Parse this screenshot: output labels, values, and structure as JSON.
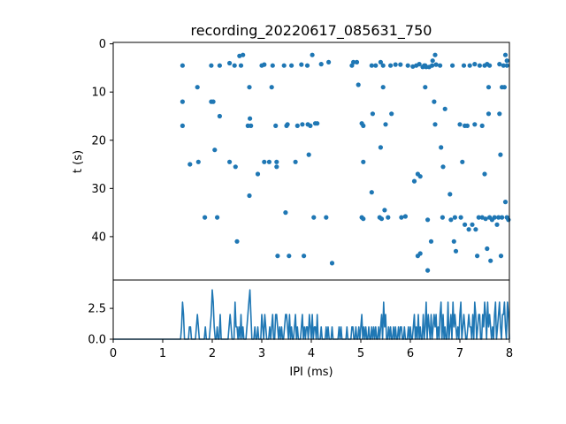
{
  "title": "recording_20220617_085631_750",
  "colors": {
    "series": "#1f77b4",
    "axes": "#000000",
    "background": "#ffffff"
  },
  "chart_data": [
    {
      "type": "scatter",
      "panel": "top",
      "title": "recording_20220617_085631_750",
      "xlabel": "",
      "ylabel": "t (s)",
      "xlim": [
        0,
        8
      ],
      "ylim": [
        49,
        -0.3
      ],
      "y_inverted": true,
      "yticks": [
        0,
        10,
        20,
        30,
        40
      ],
      "grid": false,
      "points": [
        [
          1.4,
          4.5
        ],
        [
          1.4,
          12.0
        ],
        [
          1.4,
          17.0
        ],
        [
          1.55,
          25.0
        ],
        [
          1.7,
          9.0
        ],
        [
          1.72,
          24.5
        ],
        [
          1.85,
          36.0
        ],
        [
          1.98,
          4.5
        ],
        [
          1.98,
          12.0
        ],
        [
          2.02,
          12.0
        ],
        [
          2.05,
          22.0
        ],
        [
          2.1,
          36.0
        ],
        [
          2.15,
          4.5
        ],
        [
          2.15,
          15.0
        ],
        [
          2.35,
          4.0
        ],
        [
          2.35,
          24.5
        ],
        [
          2.45,
          4.5
        ],
        [
          2.47,
          25.5
        ],
        [
          2.5,
          41.0
        ],
        [
          2.55,
          2.5
        ],
        [
          2.58,
          4.5
        ],
        [
          2.62,
          2.3
        ],
        [
          2.72,
          17.0
        ],
        [
          2.75,
          9.0
        ],
        [
          2.75,
          31.5
        ],
        [
          2.76,
          15.5
        ],
        [
          2.78,
          17.0
        ],
        [
          2.92,
          27.0
        ],
        [
          3.0,
          4.5
        ],
        [
          3.05,
          4.3
        ],
        [
          3.05,
          24.5
        ],
        [
          3.15,
          24.5
        ],
        [
          3.2,
          9.0
        ],
        [
          3.22,
          4.5
        ],
        [
          3.28,
          17.0
        ],
        [
          3.3,
          24.5
        ],
        [
          3.3,
          25.5
        ],
        [
          3.32,
          44.0
        ],
        [
          3.45,
          4.5
        ],
        [
          3.48,
          35.0
        ],
        [
          3.5,
          17.0
        ],
        [
          3.52,
          16.7
        ],
        [
          3.55,
          44.0
        ],
        [
          3.6,
          4.5
        ],
        [
          3.68,
          24.5
        ],
        [
          3.72,
          17.0
        ],
        [
          3.8,
          4.3
        ],
        [
          3.82,
          16.7
        ],
        [
          3.85,
          44.0
        ],
        [
          3.92,
          4.5
        ],
        [
          3.93,
          16.7
        ],
        [
          3.95,
          23.0
        ],
        [
          3.98,
          17.0
        ],
        [
          4.02,
          2.3
        ],
        [
          4.05,
          36.0
        ],
        [
          4.08,
          16.5
        ],
        [
          4.12,
          16.5
        ],
        [
          4.2,
          4.2
        ],
        [
          4.3,
          36.0
        ],
        [
          4.35,
          3.8
        ],
        [
          4.42,
          45.5
        ],
        [
          4.82,
          4.5
        ],
        [
          4.85,
          3.8
        ],
        [
          4.92,
          3.8
        ],
        [
          4.95,
          8.5
        ],
        [
          5.02,
          16.5
        ],
        [
          5.02,
          36.0
        ],
        [
          5.05,
          24.5
        ],
        [
          5.05,
          17.0
        ],
        [
          5.05,
          36.3
        ],
        [
          5.22,
          4.5
        ],
        [
          5.22,
          30.8
        ],
        [
          5.24,
          14.5
        ],
        [
          5.3,
          4.5
        ],
        [
          5.38,
          36.0
        ],
        [
          5.4,
          3.8
        ],
        [
          5.4,
          21.5
        ],
        [
          5.42,
          36.3
        ],
        [
          5.45,
          4.5
        ],
        [
          5.45,
          9.0
        ],
        [
          5.48,
          34.5
        ],
        [
          5.5,
          16.7
        ],
        [
          5.55,
          36.0
        ],
        [
          5.6,
          4.5
        ],
        [
          5.62,
          14.5
        ],
        [
          5.7,
          4.3
        ],
        [
          5.8,
          4.3
        ],
        [
          5.82,
          36.0
        ],
        [
          5.9,
          35.8
        ],
        [
          5.95,
          4.5
        ],
        [
          6.05,
          4.7
        ],
        [
          6.08,
          28.5
        ],
        [
          6.12,
          4.5
        ],
        [
          6.15,
          27.0
        ],
        [
          6.15,
          44.0
        ],
        [
          6.18,
          4.2
        ],
        [
          6.2,
          27.5
        ],
        [
          6.2,
          43.5
        ],
        [
          6.25,
          4.8
        ],
        [
          6.28,
          4.5
        ],
        [
          6.3,
          4.5
        ],
        [
          6.3,
          9.0
        ],
        [
          6.32,
          4.8
        ],
        [
          6.35,
          36.5
        ],
        [
          6.35,
          47.0
        ],
        [
          6.38,
          4.8
        ],
        [
          6.42,
          41.0
        ],
        [
          6.44,
          4.5
        ],
        [
          6.45,
          3.5
        ],
        [
          6.48,
          12.0
        ],
        [
          6.5,
          2.3
        ],
        [
          6.5,
          16.7
        ],
        [
          6.52,
          4.3
        ],
        [
          6.6,
          4.5
        ],
        [
          6.62,
          21.5
        ],
        [
          6.65,
          36.0
        ],
        [
          6.66,
          25.5
        ],
        [
          6.7,
          13.5
        ],
        [
          6.8,
          31.2
        ],
        [
          6.82,
          36.5
        ],
        [
          6.85,
          4.5
        ],
        [
          6.88,
          41.0
        ],
        [
          6.9,
          36.0
        ],
        [
          6.92,
          43.0
        ],
        [
          7.0,
          16.7
        ],
        [
          7.02,
          36.0
        ],
        [
          7.05,
          24.5
        ],
        [
          7.08,
          4.5
        ],
        [
          7.1,
          17.0
        ],
        [
          7.1,
          37.5
        ],
        [
          7.15,
          17.0
        ],
        [
          7.18,
          38.5
        ],
        [
          7.2,
          4.5
        ],
        [
          7.25,
          37.5
        ],
        [
          7.3,
          4.2
        ],
        [
          7.3,
          16.7
        ],
        [
          7.32,
          38.5
        ],
        [
          7.35,
          44.0
        ],
        [
          7.38,
          36.0
        ],
        [
          7.4,
          4.5
        ],
        [
          7.45,
          17.0
        ],
        [
          7.45,
          36.0
        ],
        [
          7.5,
          4.5
        ],
        [
          7.5,
          27.0
        ],
        [
          7.52,
          36.3
        ],
        [
          7.55,
          42.5
        ],
        [
          7.55,
          4.2
        ],
        [
          7.58,
          14.5
        ],
        [
          7.58,
          9.0
        ],
        [
          7.6,
          4.5
        ],
        [
          7.6,
          36.0
        ],
        [
          7.62,
          45.0
        ],
        [
          7.65,
          36.5
        ],
        [
          7.7,
          36.0
        ],
        [
          7.75,
          37.5
        ],
        [
          7.78,
          36.0
        ],
        [
          7.8,
          14.5
        ],
        [
          7.8,
          4.2
        ],
        [
          7.82,
          23.0
        ],
        [
          7.83,
          44.0
        ],
        [
          7.85,
          36.0
        ],
        [
          7.85,
          9.0
        ],
        [
          7.88,
          4.5
        ],
        [
          7.9,
          9.0
        ],
        [
          7.92,
          2.3
        ],
        [
          7.92,
          32.8
        ],
        [
          7.95,
          4.5
        ],
        [
          7.95,
          3.5
        ],
        [
          7.95,
          36.0
        ],
        [
          7.98,
          36.5
        ]
      ]
    },
    {
      "type": "line",
      "panel": "bottom",
      "xlabel": "IPI (ms)",
      "ylabel": "",
      "xlim": [
        0,
        8
      ],
      "ylim": [
        0,
        4.8
      ],
      "xticks": [
        0,
        1,
        2,
        3,
        4,
        5,
        6,
        7,
        8
      ],
      "yticks": [
        0.0,
        2.5
      ],
      "ytick_labels": [
        "0.0",
        "2.5"
      ],
      "grid": false,
      "x_step": 0.02,
      "spikes": [
        [
          1.38,
          1
        ],
        [
          1.4,
          3
        ],
        [
          1.42,
          2
        ],
        [
          1.53,
          1
        ],
        [
          1.55,
          1
        ],
        [
          1.68,
          1
        ],
        [
          1.7,
          2
        ],
        [
          1.72,
          1
        ],
        [
          1.85,
          1
        ],
        [
          1.96,
          1
        ],
        [
          1.98,
          2
        ],
        [
          2.0,
          4
        ],
        [
          2.02,
          3
        ],
        [
          2.05,
          1
        ],
        [
          2.1,
          1
        ],
        [
          2.15,
          2
        ],
        [
          2.33,
          1
        ],
        [
          2.35,
          2
        ],
        [
          2.38,
          1
        ],
        [
          2.45,
          3
        ],
        [
          2.47,
          1
        ],
        [
          2.5,
          1
        ],
        [
          2.55,
          1
        ],
        [
          2.58,
          2
        ],
        [
          2.62,
          1
        ],
        [
          2.7,
          1
        ],
        [
          2.72,
          2
        ],
        [
          2.74,
          3
        ],
        [
          2.76,
          4
        ],
        [
          2.78,
          2
        ],
        [
          2.85,
          1
        ],
        [
          2.92,
          1
        ],
        [
          3.0,
          2
        ],
        [
          3.02,
          1
        ],
        [
          3.05,
          2
        ],
        [
          3.08,
          1
        ],
        [
          3.15,
          1
        ],
        [
          3.2,
          1
        ],
        [
          3.22,
          2
        ],
        [
          3.28,
          2
        ],
        [
          3.3,
          2
        ],
        [
          3.32,
          1
        ],
        [
          3.35,
          1
        ],
        [
          3.4,
          1
        ],
        [
          3.45,
          1
        ],
        [
          3.48,
          2
        ],
        [
          3.5,
          2
        ],
        [
          3.52,
          1
        ],
        [
          3.55,
          2
        ],
        [
          3.6,
          1
        ],
        [
          3.65,
          1
        ],
        [
          3.68,
          2
        ],
        [
          3.72,
          1
        ],
        [
          3.8,
          1
        ],
        [
          3.82,
          2
        ],
        [
          3.85,
          1
        ],
        [
          3.9,
          1
        ],
        [
          3.92,
          1
        ],
        [
          3.95,
          2
        ],
        [
          3.98,
          1
        ],
        [
          4.02,
          2
        ],
        [
          4.05,
          1
        ],
        [
          4.08,
          1
        ],
        [
          4.12,
          2
        ],
        [
          4.2,
          1
        ],
        [
          4.3,
          1
        ],
        [
          4.35,
          1
        ],
        [
          4.42,
          1
        ],
        [
          4.55,
          1
        ],
        [
          4.6,
          1
        ],
        [
          4.72,
          1
        ],
        [
          4.82,
          1
        ],
        [
          4.85,
          1
        ],
        [
          4.9,
          1
        ],
        [
          4.95,
          1
        ],
        [
          5.0,
          1
        ],
        [
          5.02,
          2
        ],
        [
          5.05,
          1
        ],
        [
          5.1,
          1
        ],
        [
          5.15,
          1
        ],
        [
          5.22,
          1
        ],
        [
          5.25,
          1
        ],
        [
          5.3,
          1
        ],
        [
          5.35,
          1
        ],
        [
          5.4,
          1
        ],
        [
          5.42,
          2
        ],
        [
          5.45,
          3
        ],
        [
          5.48,
          1
        ],
        [
          5.5,
          2
        ],
        [
          5.55,
          1
        ],
        [
          5.6,
          1
        ],
        [
          5.65,
          1
        ],
        [
          5.7,
          1
        ],
        [
          5.75,
          1
        ],
        [
          5.8,
          1
        ],
        [
          5.82,
          1
        ],
        [
          5.88,
          1
        ],
        [
          5.95,
          1
        ],
        [
          6.0,
          1
        ],
        [
          6.05,
          1
        ],
        [
          6.08,
          2
        ],
        [
          6.12,
          1
        ],
        [
          6.15,
          2
        ],
        [
          6.2,
          1
        ],
        [
          6.25,
          2
        ],
        [
          6.3,
          1
        ],
        [
          6.32,
          3
        ],
        [
          6.35,
          2
        ],
        [
          6.38,
          1
        ],
        [
          6.42,
          2
        ],
        [
          6.45,
          1
        ],
        [
          6.48,
          2
        ],
        [
          6.5,
          1
        ],
        [
          6.52,
          2
        ],
        [
          6.55,
          1
        ],
        [
          6.6,
          2
        ],
        [
          6.62,
          3
        ],
        [
          6.65,
          2
        ],
        [
          6.7,
          1
        ],
        [
          6.75,
          3
        ],
        [
          6.8,
          1
        ],
        [
          6.82,
          2
        ],
        [
          6.85,
          3
        ],
        [
          6.88,
          1
        ],
        [
          6.9,
          2
        ],
        [
          6.92,
          1
        ],
        [
          6.95,
          1
        ],
        [
          7.0,
          2
        ],
        [
          7.02,
          3
        ],
        [
          7.05,
          1
        ],
        [
          7.08,
          2
        ],
        [
          7.1,
          1
        ],
        [
          7.15,
          1
        ],
        [
          7.18,
          2
        ],
        [
          7.2,
          1
        ],
        [
          7.22,
          1
        ],
        [
          7.25,
          2
        ],
        [
          7.3,
          3
        ],
        [
          7.32,
          2
        ],
        [
          7.35,
          1
        ],
        [
          7.38,
          2
        ],
        [
          7.4,
          2
        ],
        [
          7.45,
          2
        ],
        [
          7.48,
          1
        ],
        [
          7.5,
          3
        ],
        [
          7.52,
          2
        ],
        [
          7.55,
          3
        ],
        [
          7.58,
          1
        ],
        [
          7.6,
          2
        ],
        [
          7.62,
          1
        ],
        [
          7.65,
          1
        ],
        [
          7.7,
          2
        ],
        [
          7.72,
          3
        ],
        [
          7.75,
          1
        ],
        [
          7.78,
          2
        ],
        [
          7.8,
          3
        ],
        [
          7.82,
          1
        ],
        [
          7.85,
          2
        ],
        [
          7.88,
          2
        ],
        [
          7.9,
          3
        ],
        [
          7.92,
          1
        ],
        [
          7.95,
          3
        ],
        [
          7.98,
          2
        ]
      ]
    }
  ]
}
